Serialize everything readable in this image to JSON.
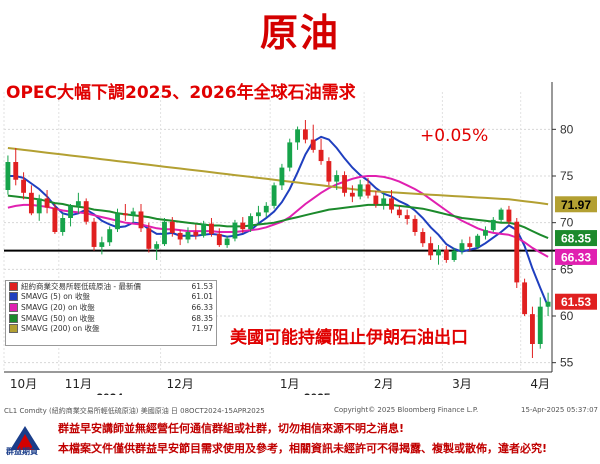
{
  "page_title": "原油",
  "subtitle": "OPEC大幅下調2025、2026年全球石油需求",
  "pct_note": "+0.05%",
  "annotation": "美國可能持續阻止伊朗石油出口",
  "colors": {
    "title_red": "#d40000",
    "candle_up": "#16a34a",
    "candle_down": "#e02020",
    "sma5": "#1f3fbf",
    "sma20": "#e020b0",
    "sma50": "#1c8a2c",
    "sma200": "#b3a032",
    "last_price": "#e02020",
    "ref_line": "#000000"
  },
  "legend": {
    "rows": [
      {
        "label": "紐約商業交易所輕低硫原油 - 最新價",
        "value": "61.53",
        "color": "#e02020"
      },
      {
        "label": "SMAVG (5)  on 收盤",
        "value": "61.01",
        "color": "#1f3fbf"
      },
      {
        "label": "SMAVG (20)  on 收盤",
        "value": "66.33",
        "color": "#e020b0"
      },
      {
        "label": "SMAVG (50)  on 收盤",
        "value": "68.35",
        "color": "#1c8a2c"
      },
      {
        "label": "SMAVG (200)  on 收盤",
        "value": "71.97",
        "color": "#b3a032"
      }
    ]
  },
  "source": {
    "left": "CL1 Comdty (紐約商業交易所輕低硫原油) 美國原油  日 08OCT2024-15APR2025",
    "center": "Copyright© 2025 Bloomberg Finance L.P.",
    "right": "15-Apr-2025 05:37:07"
  },
  "footer": {
    "logo_text": "群益期貨",
    "line1": "群益早安講師並無經營任何通信群組或社群，切勿相信來源不明之消息!",
    "line2": "本檔案文件僅供群益早安節目需求使用及參考，相關資訊未經許可不得揭露、複製或散佈，違者必究!"
  },
  "chart_data": {
    "type": "candlestick",
    "x_labels": [
      "10月",
      "11月",
      "12月",
      "1月",
      "2月",
      "3月",
      "4月"
    ],
    "year_labels": [
      "2024",
      "2025"
    ],
    "y_ticks": [
      55,
      60,
      65,
      70,
      75,
      80
    ],
    "ylim": [
      54,
      84
    ],
    "reference_line": 67,
    "ohlc": [
      [
        73.5,
        77.2,
        73.0,
        76.5
      ],
      [
        76.5,
        78.0,
        74.0,
        74.6
      ],
      [
        74.6,
        75.4,
        72.5,
        73.2
      ],
      [
        73.2,
        74.0,
        70.8,
        71.0
      ],
      [
        71.0,
        73.0,
        70.2,
        72.6
      ],
      [
        72.6,
        73.5,
        71.0,
        71.6
      ],
      [
        71.6,
        72.0,
        68.8,
        69.0
      ],
      [
        69.0,
        71.0,
        68.6,
        70.5
      ],
      [
        70.5,
        72.0,
        69.6,
        71.8
      ],
      [
        71.8,
        73.2,
        71.0,
        72.3
      ],
      [
        72.3,
        72.6,
        69.8,
        70.1
      ],
      [
        70.1,
        70.5,
        67.0,
        67.4
      ],
      [
        67.4,
        68.5,
        66.6,
        67.9
      ],
      [
        67.9,
        69.6,
        67.5,
        69.3
      ],
      [
        69.3,
        71.5,
        69.0,
        71.0
      ],
      [
        71.0,
        72.0,
        70.2,
        70.8
      ],
      [
        70.8,
        71.6,
        70.0,
        71.2
      ],
      [
        71.2,
        72.0,
        69.0,
        69.4
      ],
      [
        69.4,
        70.0,
        66.8,
        67.2
      ],
      [
        67.2,
        68.0,
        66.0,
        67.7
      ],
      [
        67.7,
        70.5,
        67.5,
        70.1
      ],
      [
        70.1,
        70.6,
        68.5,
        68.9
      ],
      [
        68.9,
        69.2,
        67.6,
        68.2
      ],
      [
        68.2,
        69.5,
        67.8,
        69.0
      ],
      [
        69.0,
        69.8,
        68.2,
        68.6
      ],
      [
        68.6,
        70.2,
        68.4,
        69.9
      ],
      [
        69.9,
        70.5,
        68.5,
        68.8
      ],
      [
        68.8,
        69.4,
        67.4,
        67.6
      ],
      [
        67.6,
        68.6,
        67.3,
        68.3
      ],
      [
        68.3,
        70.3,
        68.0,
        70.0
      ],
      [
        70.0,
        70.6,
        68.9,
        69.3
      ],
      [
        69.3,
        71.0,
        69.0,
        70.7
      ],
      [
        70.7,
        71.8,
        70.0,
        71.1
      ],
      [
        71.1,
        72.2,
        70.6,
        71.8
      ],
      [
        71.8,
        74.3,
        71.5,
        74.0
      ],
      [
        74.0,
        76.3,
        73.5,
        75.9
      ],
      [
        75.9,
        79.0,
        75.5,
        78.6
      ],
      [
        78.6,
        80.3,
        77.8,
        80.0
      ],
      [
        80.0,
        81.0,
        78.5,
        78.9
      ],
      [
        78.9,
        80.5,
        77.5,
        77.8
      ],
      [
        77.8,
        79.0,
        76.2,
        76.6
      ],
      [
        76.6,
        77.0,
        74.0,
        74.4
      ],
      [
        74.4,
        75.6,
        73.5,
        75.1
      ],
      [
        75.1,
        75.5,
        72.8,
        73.2
      ],
      [
        73.2,
        74.0,
        72.2,
        72.8
      ],
      [
        72.8,
        74.6,
        72.5,
        74.1
      ],
      [
        74.1,
        74.8,
        72.6,
        72.9
      ],
      [
        72.9,
        73.4,
        71.6,
        72.0
      ],
      [
        72.0,
        73.2,
        71.4,
        72.6
      ],
      [
        72.6,
        73.5,
        71.0,
        71.4
      ],
      [
        71.4,
        71.8,
        70.5,
        70.8
      ],
      [
        70.8,
        71.4,
        69.8,
        70.4
      ],
      [
        70.4,
        70.8,
        68.6,
        69.0
      ],
      [
        69.0,
        69.4,
        67.4,
        67.8
      ],
      [
        67.8,
        68.5,
        66.0,
        66.5
      ],
      [
        66.5,
        67.6,
        65.5,
        67.1
      ],
      [
        67.1,
        67.5,
        65.7,
        66.0
      ],
      [
        66.0,
        67.3,
        65.8,
        67.0
      ],
      [
        67.0,
        68.2,
        66.6,
        67.8
      ],
      [
        67.8,
        68.5,
        67.0,
        67.4
      ],
      [
        67.4,
        68.8,
        67.2,
        68.6
      ],
      [
        68.6,
        69.6,
        68.2,
        69.2
      ],
      [
        69.2,
        70.6,
        69.0,
        70.3
      ],
      [
        70.3,
        71.6,
        70.0,
        71.4
      ],
      [
        71.4,
        71.8,
        69.8,
        70.1
      ],
      [
        70.1,
        70.5,
        63.0,
        63.6
      ],
      [
        63.6,
        64.0,
        60.0,
        60.2
      ],
      [
        60.2,
        61.0,
        55.5,
        57.0
      ],
      [
        57.0,
        62.0,
        56.5,
        61.0
      ],
      [
        61.0,
        62.5,
        60.0,
        61.53
      ]
    ],
    "series": [
      {
        "name": "SMAVG (5)",
        "values": [
          75.0,
          75.0,
          74.8,
          74.2,
          73.6,
          72.8,
          71.8,
          71.0,
          70.8,
          71.0,
          71.4,
          70.9,
          70.2,
          69.8,
          69.5,
          69.6,
          70.0,
          69.9,
          69.3,
          68.8,
          68.8,
          68.9,
          68.6,
          68.6,
          68.6,
          68.7,
          68.8,
          68.7,
          68.5,
          68.6,
          68.8,
          69.2,
          69.9,
          70.5,
          71.2,
          72.2,
          73.6,
          75.4,
          77.3,
          78.7,
          79.2,
          78.9,
          78.0,
          76.9,
          75.9,
          75.1,
          74.5,
          73.7,
          73.1,
          72.8,
          72.3,
          71.9,
          71.3,
          70.5,
          69.5,
          68.7,
          67.7,
          67.2,
          66.9,
          67.1,
          67.3,
          67.8,
          68.4,
          69.0,
          69.7,
          69.2,
          67.5,
          65.1,
          63.0,
          61.01
        ]
      },
      {
        "name": "SMAVG (20)",
        "values": [
          71.6,
          71.8,
          71.9,
          71.9,
          71.8,
          71.7,
          71.5,
          71.3,
          71.2,
          71.1,
          71.0,
          70.8,
          70.6,
          70.4,
          70.2,
          70.0,
          69.9,
          69.8,
          69.6,
          69.4,
          69.3,
          69.3,
          69.2,
          69.1,
          69.1,
          69.1,
          69.1,
          69.0,
          69.0,
          69.0,
          69.1,
          69.2,
          69.3,
          69.5,
          69.8,
          70.1,
          70.6,
          71.3,
          72.0,
          72.6,
          73.2,
          73.7,
          74.1,
          74.4,
          74.7,
          74.9,
          75.0,
          75.0,
          74.9,
          74.7,
          74.4,
          74.0,
          73.6,
          73.1,
          72.5,
          71.9,
          71.3,
          70.7,
          70.2,
          69.8,
          69.4,
          69.1,
          68.9,
          68.8,
          68.7,
          68.4,
          67.9,
          67.3,
          66.8,
          66.33
        ]
      },
      {
        "name": "SMAVG (50)",
        "values": [
          72.9,
          72.8,
          72.7,
          72.6,
          72.5,
          72.3,
          72.1,
          72.0,
          71.8,
          71.7,
          71.6,
          71.4,
          71.3,
          71.2,
          71.0,
          70.9,
          70.8,
          70.7,
          70.6,
          70.4,
          70.3,
          70.2,
          70.1,
          70.0,
          69.9,
          69.8,
          69.7,
          69.7,
          69.6,
          69.6,
          69.6,
          69.7,
          69.8,
          69.9,
          70.0,
          70.2,
          70.4,
          70.6,
          70.8,
          71.0,
          71.2,
          71.4,
          71.5,
          71.6,
          71.7,
          71.8,
          71.9,
          71.9,
          71.9,
          71.9,
          71.8,
          71.7,
          71.6,
          71.5,
          71.3,
          71.1,
          70.9,
          70.7,
          70.5,
          70.4,
          70.3,
          70.2,
          70.1,
          70.0,
          70.0,
          69.8,
          69.5,
          69.1,
          68.7,
          68.35
        ]
      },
      {
        "name": "SMAVG (200)",
        "values": [
          78.0,
          77.9,
          77.8,
          77.7,
          77.6,
          77.5,
          77.4,
          77.3,
          77.2,
          77.1,
          77.0,
          76.9,
          76.8,
          76.7,
          76.6,
          76.5,
          76.4,
          76.3,
          76.2,
          76.1,
          76.0,
          75.9,
          75.8,
          75.7,
          75.6,
          75.5,
          75.4,
          75.3,
          75.2,
          75.1,
          75.0,
          74.9,
          74.8,
          74.7,
          74.6,
          74.5,
          74.4,
          74.3,
          74.2,
          74.1,
          74.0,
          73.9,
          73.8,
          73.7,
          73.6,
          73.5,
          73.4,
          73.35,
          73.3,
          73.25,
          73.2,
          73.15,
          73.1,
          73.05,
          73.0,
          72.95,
          72.9,
          72.85,
          72.8,
          72.75,
          72.7,
          72.65,
          72.6,
          72.55,
          72.5,
          72.4,
          72.3,
          72.2,
          72.1,
          71.97
        ]
      }
    ],
    "last_values": [
      {
        "name": "SMAVG (200)",
        "value": "71.97",
        "color": "#b3a032"
      },
      {
        "name": "SMAVG (50)",
        "value": "68.35",
        "color": "#1c8a2c"
      },
      {
        "name": "SMAVG (20)",
        "value": "66.33",
        "color": "#e020b0"
      },
      {
        "name": "最新價",
        "value": "61.53",
        "color": "#e02020"
      }
    ]
  }
}
